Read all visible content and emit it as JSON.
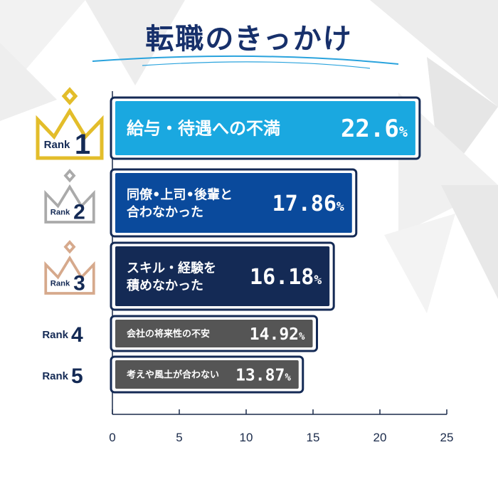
{
  "title": "転職のきっかけ",
  "colors": {
    "navy": "#142a55",
    "gold": "#e3bd2a",
    "silver": "#aaaaaa",
    "bronze": "#d6a98c",
    "bar1": "#1aa8e0",
    "bar2": "#0a4a9c",
    "bar3": "#142a55",
    "bar4": "#555555",
    "bar5": "#555555"
  },
  "chart_data": {
    "type": "bar",
    "orientation": "horizontal",
    "xlim": [
      0,
      25
    ],
    "xticks": [
      "0",
      "5",
      "10",
      "15",
      "20",
      "25"
    ],
    "items": [
      {
        "rank_label": "Rank",
        "rank": "1",
        "lines": [
          "給与・待遇への不満"
        ],
        "value": 22.6,
        "value_label": "22.6",
        "unit": "%"
      },
      {
        "rank_label": "Rank",
        "rank": "2",
        "lines": [
          "同僚•上司•後輩と",
          "合わなかった"
        ],
        "value": 17.86,
        "value_label": "17.86",
        "unit": "%"
      },
      {
        "rank_label": "Rank",
        "rank": "3",
        "lines": [
          "スキル・経験を",
          "積めなかった"
        ],
        "value": 16.18,
        "value_label": "16.18",
        "unit": "%"
      },
      {
        "rank_label": "Rank",
        "rank": "4",
        "lines": [
          "会社の将来性の不安"
        ],
        "value": 14.92,
        "value_label": "14.92",
        "unit": "%"
      },
      {
        "rank_label": "Rank",
        "rank": "5",
        "lines": [
          "考えや風土が合わない"
        ],
        "value": 13.87,
        "value_label": "13.87",
        "unit": "%"
      }
    ]
  }
}
